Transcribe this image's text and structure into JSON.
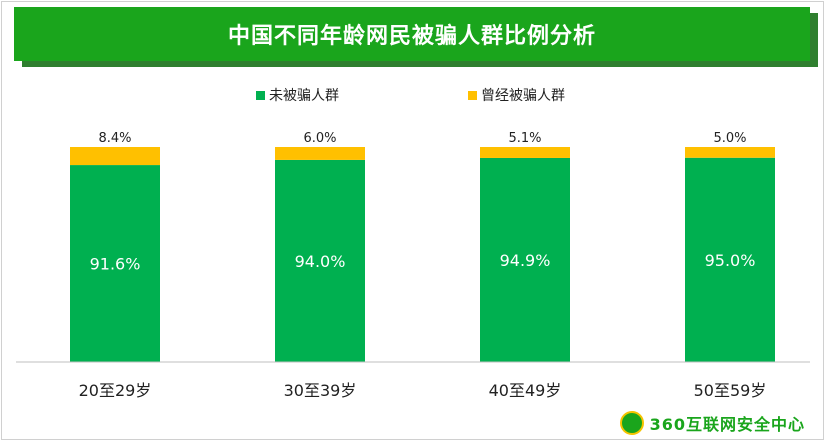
{
  "header": {
    "title": "中国不同年龄网民被骗人群比例分析"
  },
  "footer": {
    "brand": "360互联网安全中心"
  },
  "colors": {
    "green": "#00b050",
    "yellow": "#ffc000",
    "title_bg": "#1aa51c"
  },
  "chart_data": {
    "type": "bar",
    "stacked": true,
    "percent_stacked": true,
    "categories": [
      "20至29岁",
      "30至39岁",
      "40至49岁",
      "50至59岁"
    ],
    "series": [
      {
        "name": "未被骗人群",
        "color": "#00b050",
        "values": [
          91.6,
          94.0,
          94.9,
          95.0
        ],
        "labels": [
          "91.6%",
          "94.0%",
          "94.9%",
          "95.0%"
        ]
      },
      {
        "name": "曾经被骗人群",
        "color": "#ffc000",
        "values": [
          8.4,
          6.0,
          5.1,
          5.0
        ],
        "labels": [
          "8.4%",
          "6.0%",
          "5.1%",
          "5.0%"
        ]
      }
    ],
    "ylim": [
      0,
      100
    ],
    "legend": "top",
    "grid": false
  }
}
